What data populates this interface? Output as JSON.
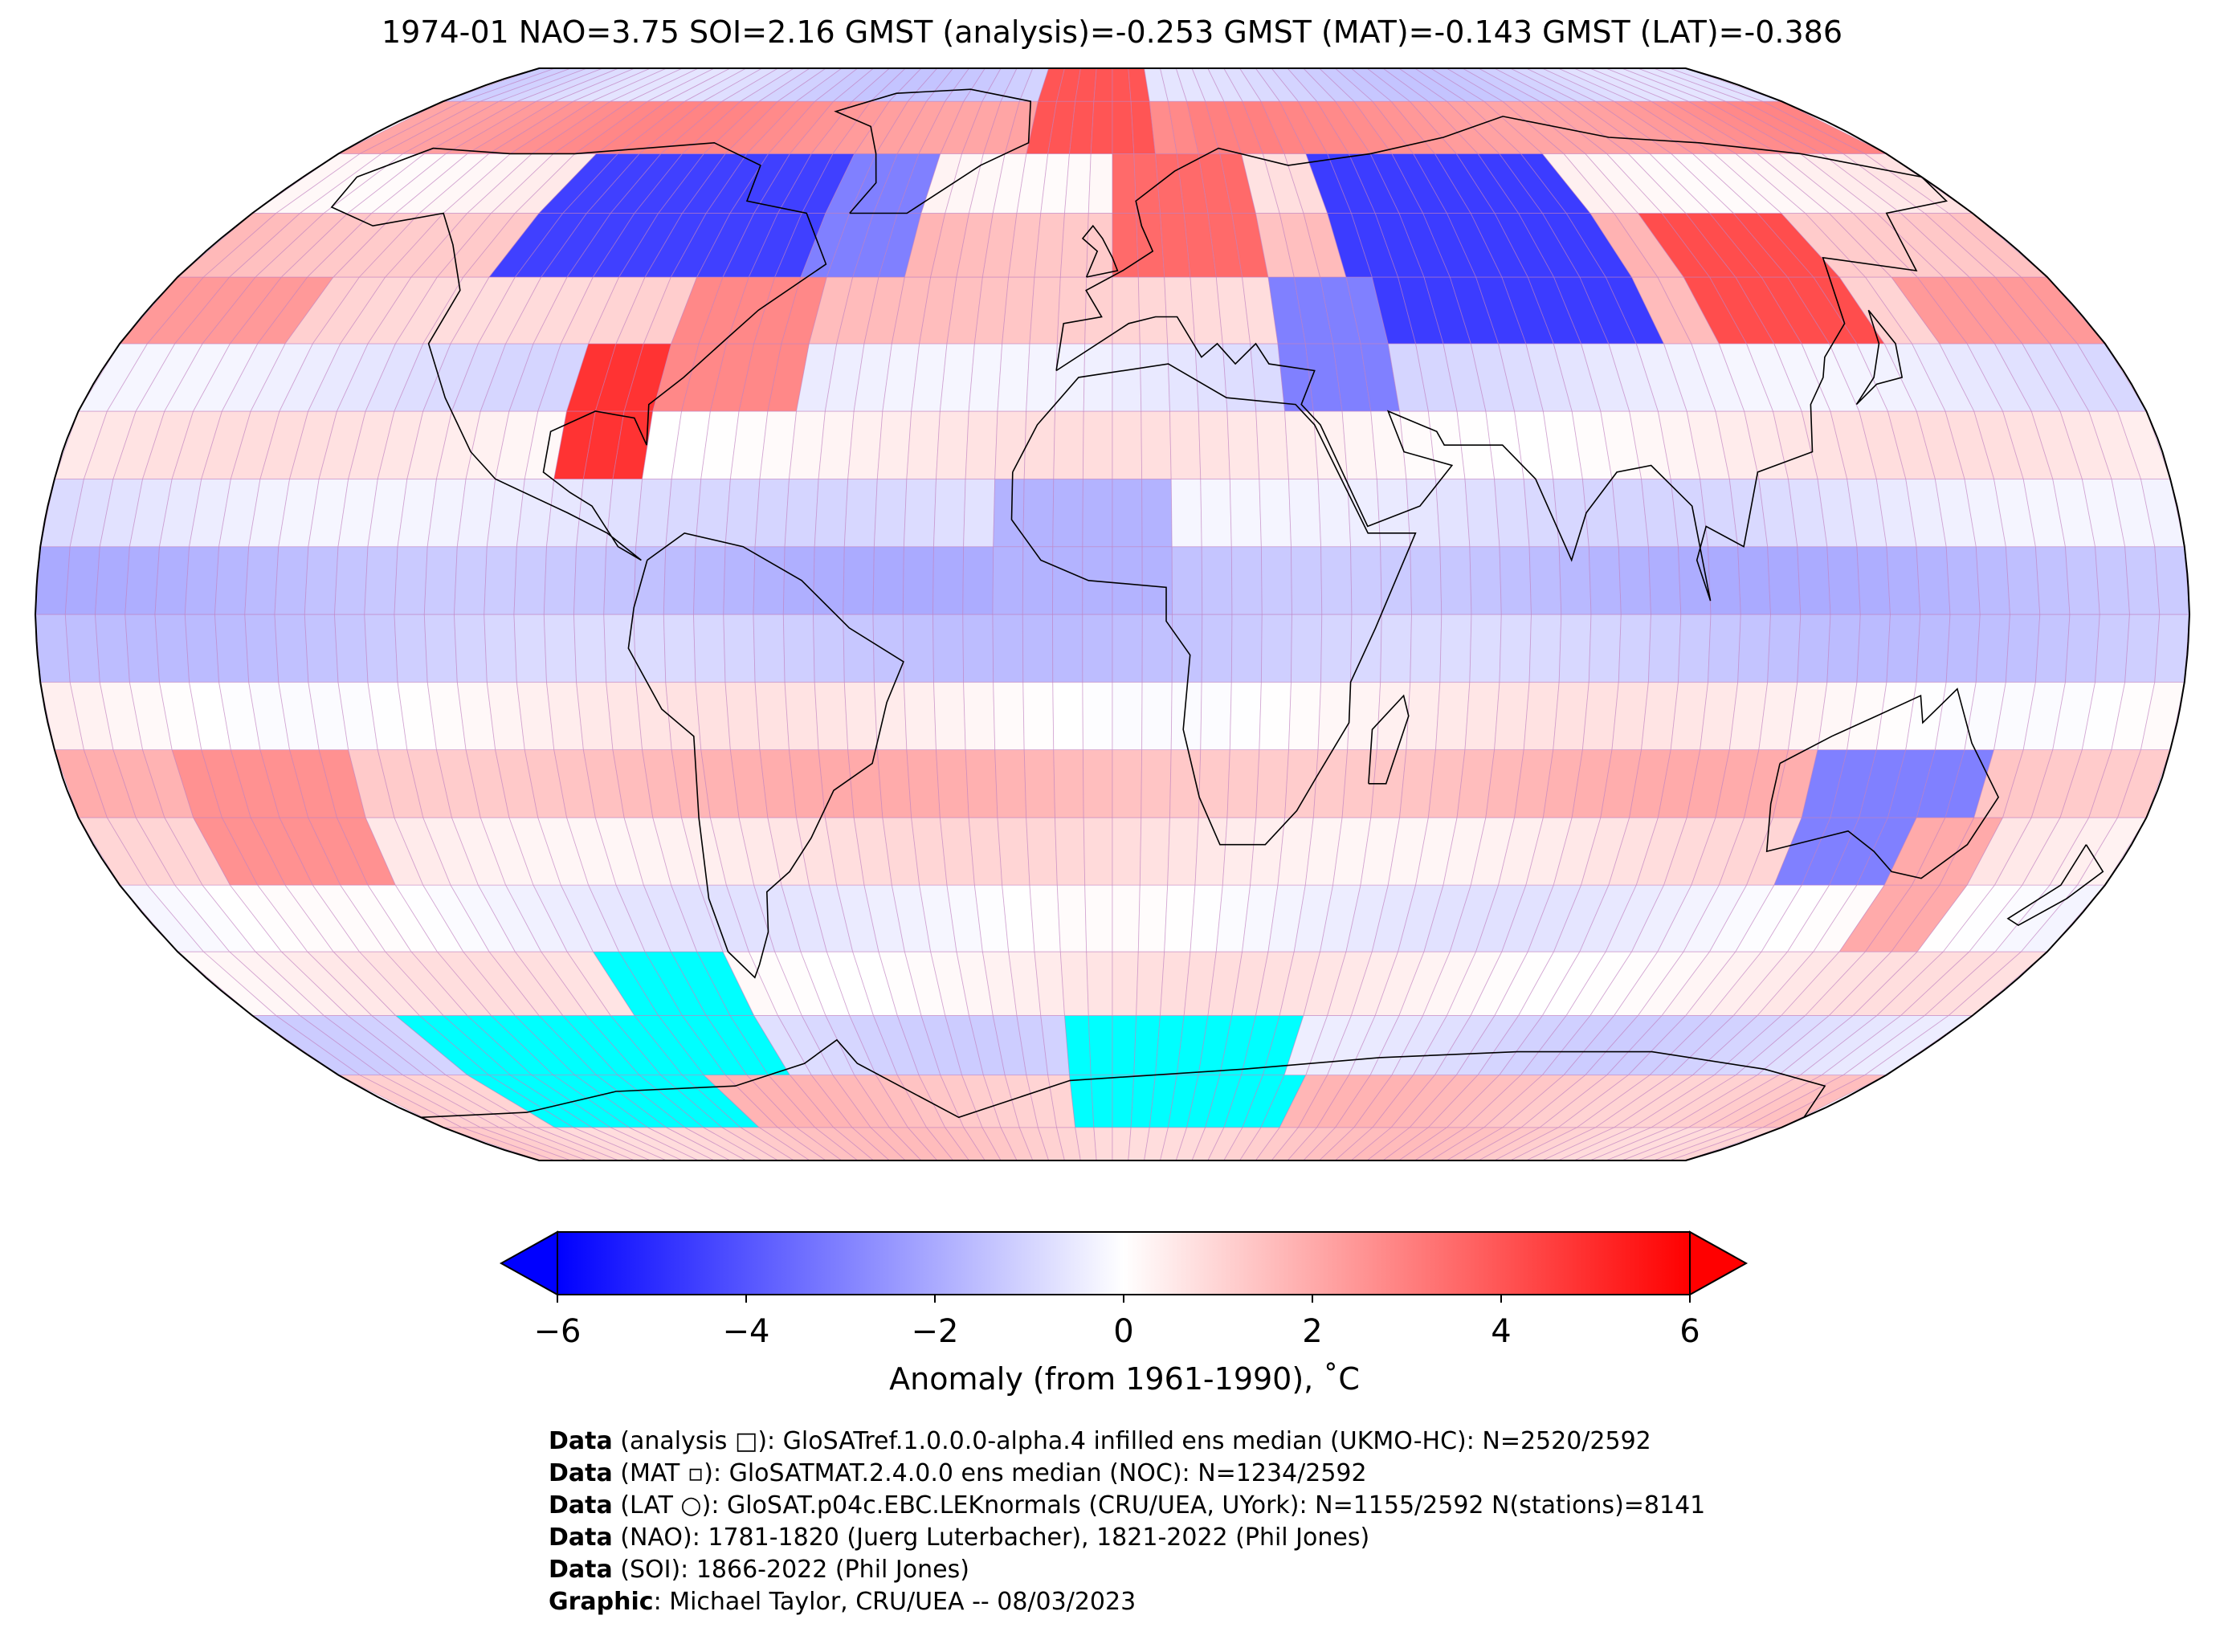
{
  "title": "1974-01 NAO=3.75 SOI=2.16 GMST (analysis)=-0.253 GMST (MAT)=-0.143 GMST (LAT)=-0.386",
  "colorbar": {
    "label": "Anomaly (from 1961-1990), ˚C",
    "ticks": [
      "−6",
      "−4",
      "−2",
      "0",
      "2",
      "4",
      "6"
    ],
    "range": [
      -6,
      6
    ],
    "colors": {
      "low": "#0000ff",
      "mid": "#ffffff",
      "high": "#ff0000"
    }
  },
  "map": {
    "projection": "Robinson",
    "missing_color": "#00ffff",
    "grid_color": "#c080c0",
    "ocean_latitude_bands": [
      {
        "lat": 85,
        "anomaly": -1.0
      },
      {
        "lat": 75,
        "anomaly": 2.5
      },
      {
        "lat": 65,
        "anomaly": 0.5
      },
      {
        "lat": 55,
        "anomaly": 1.6
      },
      {
        "lat": 45,
        "anomaly": 1.2
      },
      {
        "lat": 35,
        "anomaly": -0.6
      },
      {
        "lat": 25,
        "anomaly": 0.4
      },
      {
        "lat": 15,
        "anomaly": -0.6
      },
      {
        "lat": 5,
        "anomaly": -1.6
      },
      {
        "lat": -5,
        "anomaly": -1.2
      },
      {
        "lat": -15,
        "anomaly": 0.3
      },
      {
        "lat": -25,
        "anomaly": 1.6
      },
      {
        "lat": -35,
        "anomaly": 0.6
      },
      {
        "lat": -45,
        "anomaly": -0.3
      },
      {
        "lat": -55,
        "anomaly": 0.4
      },
      {
        "lat": -65,
        "anomaly": -0.8
      },
      {
        "lat": -75,
        "anomaly": 1.4
      },
      {
        "lat": -85,
        "anomaly": 1.2
      }
    ]
  },
  "credits": [
    {
      "bold": "Data",
      "text": " (analysis □): GloSATref.1.0.0.0-alpha.4 infilled ens median (UKMO-HC): N=2520/2592"
    },
    {
      "bold": "Data",
      "text": " (MAT ▫): GloSATMAT.2.4.0.0 ens median (NOC): N=1234/2592"
    },
    {
      "bold": "Data",
      "text": " (LAT ○): GloSAT.p04c.EBC.LEKnormals (CRU/UEA, UYork): N=1155/2592 N(stations)=8141"
    },
    {
      "bold": "Data",
      "text": " (NAO): 1781-1820 (Juerg Luterbacher), 1821-2022 (Phil Jones)"
    },
    {
      "bold": "Data",
      "text": " (SOI): 1866-2022 (Phil Jones)"
    },
    {
      "bold": "Graphic",
      "text": ": Michael Taylor, CRU/UEA -- 08/03/2023"
    }
  ]
}
